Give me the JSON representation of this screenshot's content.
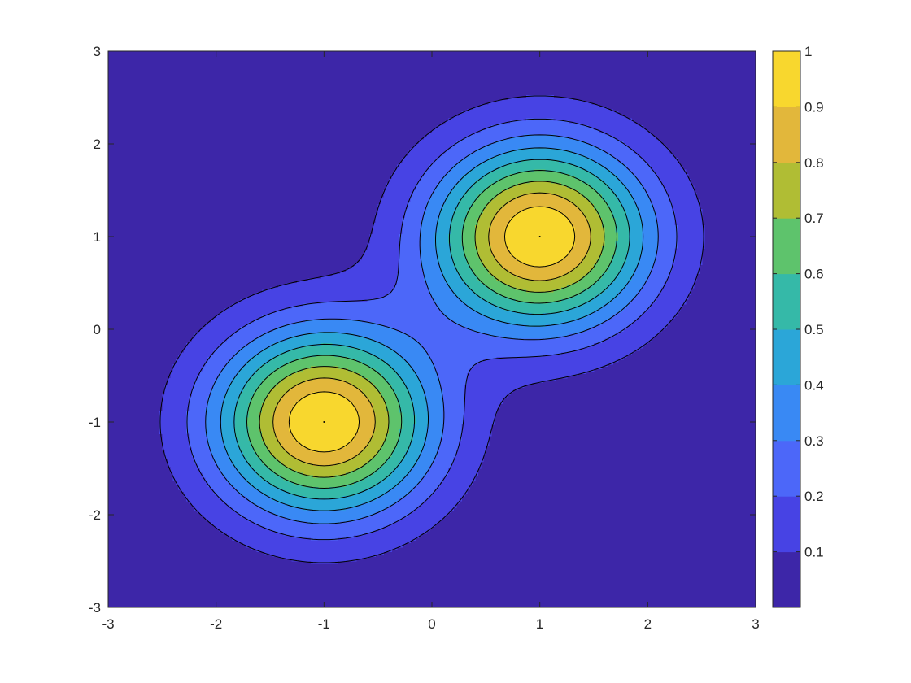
{
  "chart_data": {
    "type": "filled-contour",
    "title": "",
    "xlabel": "",
    "ylabel": "",
    "xlim": [
      -3,
      3
    ],
    "ylim": [
      -3,
      3
    ],
    "function": "exp(-((x-1)^2+(y-1)^2)) + exp(-((x+1)^2+(y+1)^2))",
    "peaks": [
      {
        "x": 1,
        "y": 1,
        "value": 1
      },
      {
        "x": -1,
        "y": -1,
        "value": 1
      }
    ],
    "contour_levels": [
      0.1,
      0.2,
      0.3,
      0.4,
      0.5,
      0.6,
      0.7,
      0.8,
      0.9
    ],
    "x_ticks": [
      -3,
      -2,
      -1,
      0,
      1,
      2,
      3
    ],
    "x_tick_labels": [
      "-3",
      "-2",
      "-1",
      "0",
      "1",
      "2",
      "3"
    ],
    "y_ticks": [
      -3,
      -2,
      -1,
      0,
      1,
      2,
      3
    ],
    "y_tick_labels": [
      "-3",
      "-2",
      "-1",
      "0",
      "1",
      "2",
      "3"
    ],
    "colorbar": {
      "ticks": [
        0.1,
        0.2,
        0.3,
        0.4,
        0.5,
        0.6,
        0.7,
        0.8,
        0.9,
        1
      ],
      "tick_labels": [
        "0.1",
        "0.2",
        "0.3",
        "0.4",
        "0.5",
        "0.6",
        "0.7",
        "0.8",
        "0.9",
        "1"
      ],
      "range": [
        0,
        1
      ],
      "band_colors": [
        "#3d26a8",
        "#4743e4",
        "#4c67f9",
        "#3989f4",
        "#2ba6d8",
        "#35b9a8",
        "#5ec36c",
        "#b0bd34",
        "#e2b73b",
        "#f8d72e"
      ]
    },
    "grid": false
  }
}
